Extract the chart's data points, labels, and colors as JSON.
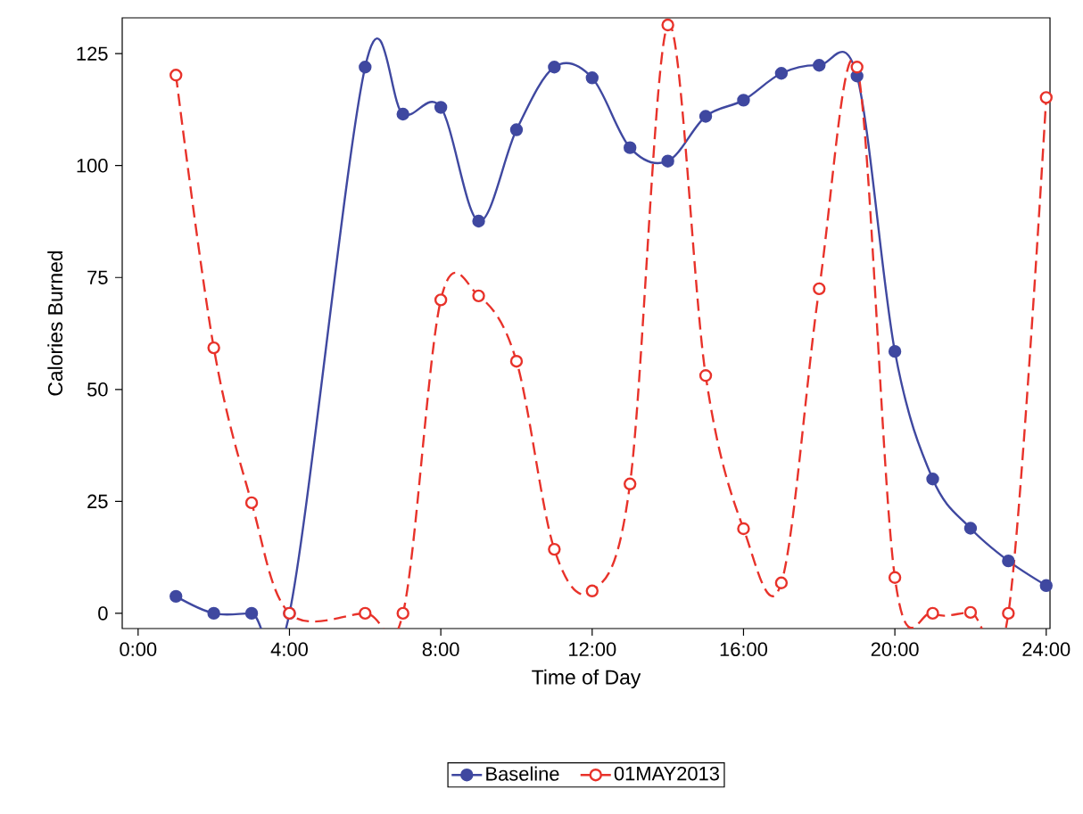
{
  "chart_data": {
    "type": "line",
    "xlabel": "Time of Day",
    "ylabel": "Calories Burned",
    "xlim": [
      -0.42,
      24.1
    ],
    "ylim": [
      -3.4,
      133
    ],
    "xticks": [
      {
        "value": 0,
        "label": "0:00"
      },
      {
        "value": 4,
        "label": "4:00"
      },
      {
        "value": 8,
        "label": "8:00"
      },
      {
        "value": 12,
        "label": "12:00"
      },
      {
        "value": 16,
        "label": "16:00"
      },
      {
        "value": 20,
        "label": "20:00"
      },
      {
        "value": 24,
        "label": "24:00"
      }
    ],
    "yticks": [
      0,
      25,
      50,
      75,
      100,
      125
    ],
    "grid": false,
    "legend": "bottom",
    "marker": "circle",
    "series": [
      {
        "name": "Baseline",
        "color": "#3f48a0",
        "line_style": "solid",
        "x": [
          1,
          2,
          3,
          4,
          6,
          7,
          8,
          9,
          10,
          11,
          12,
          13,
          14,
          15,
          16,
          17,
          18,
          19,
          20,
          21,
          22,
          23,
          24
        ],
        "values": [
          3.8,
          0,
          0,
          0,
          122,
          111.5,
          113,
          87.6,
          108,
          122,
          119.6,
          104,
          101,
          111,
          114.6,
          120.6,
          122.4,
          120,
          58.5,
          30,
          19,
          11.7,
          6.2
        ]
      },
      {
        "name": "01MAY2013",
        "color": "#e8322a",
        "line_style": "dashed",
        "x": [
          1,
          2,
          3,
          4,
          6,
          7,
          8,
          9,
          10,
          11,
          12,
          13,
          14,
          15,
          16,
          17,
          18,
          19,
          20,
          21,
          22,
          23,
          24
        ],
        "values": [
          120.2,
          59.3,
          24.7,
          0,
          0,
          0,
          70,
          70.9,
          56.3,
          14.3,
          5,
          28.9,
          131.4,
          53.1,
          18.9,
          6.8,
          72.5,
          122,
          8,
          0,
          0.2,
          0,
          115.2
        ]
      }
    ]
  }
}
